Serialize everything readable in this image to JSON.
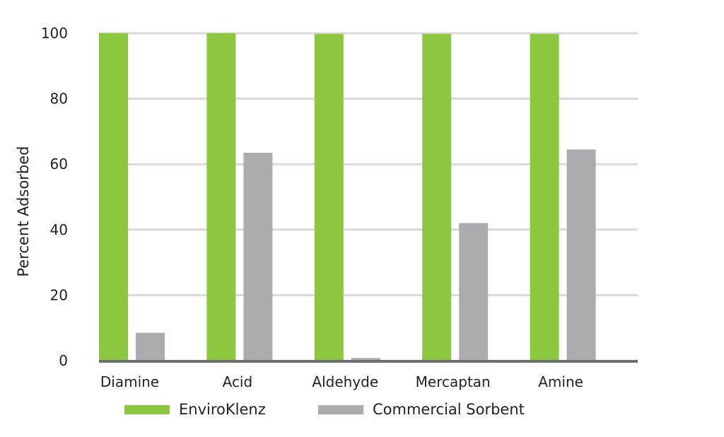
{
  "chart_data": {
    "type": "bar",
    "title": "",
    "xlabel": "",
    "ylabel": "Percent Adsorbed",
    "ylim": [
      0,
      100
    ],
    "yticks": [
      0,
      20,
      40,
      60,
      80,
      100
    ],
    "grid": true,
    "legend_position": "bottom",
    "categories": [
      "Diamine",
      "Acid",
      "Aldehyde",
      "Mercaptan",
      "Amine"
    ],
    "series": [
      {
        "name": "EnviroKlenz",
        "color": "#8dc63f",
        "values": [
          100,
          100,
          99.8,
          99.8,
          99.8
        ]
      },
      {
        "name": "Commercial Sorbent",
        "color": "#acabaf",
        "values": [
          8.5,
          63.5,
          0.8,
          42,
          64.5
        ]
      }
    ]
  }
}
